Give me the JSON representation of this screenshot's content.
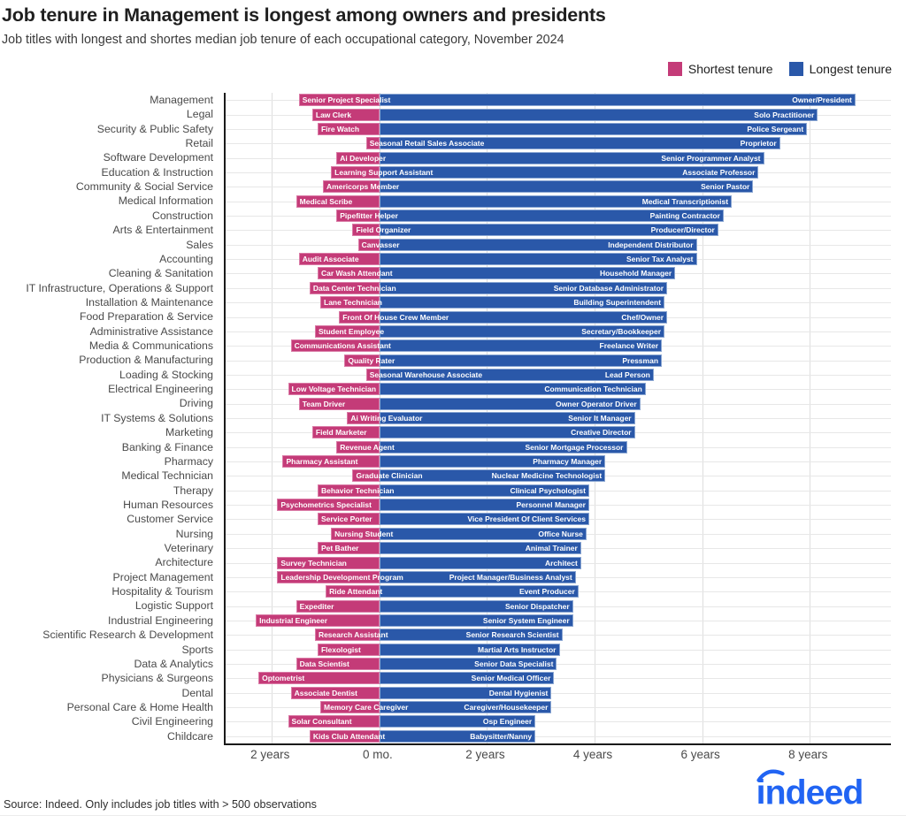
{
  "header": {
    "title": "Job tenure in Management is longest among owners and presidents",
    "subtitle": "Job titles with longest and shortes median job tenure of each occupational category, November 2024"
  },
  "legend": [
    {
      "label": "Shortest tenure",
      "color": "#c43b78"
    },
    {
      "label": "Longest tenure",
      "color": "#2a58a9"
    }
  ],
  "source": "Source: Indeed. Only includes job titles with > 500 observations",
  "logo": {
    "text": "indeed",
    "color": "#2164f3"
  },
  "colors": {
    "shortest": "#c43b78",
    "longest": "#2a58a9",
    "axis": "#1a1a1a",
    "gridline": "#e7e7e7"
  },
  "chart_data": {
    "type": "bar",
    "orientation": "horizontal-diverging",
    "unit": "years",
    "xlim": [
      -2.86,
      9.51
    ],
    "grid": true,
    "legend_position": "top-right",
    "categories": [
      "Management",
      "Legal",
      "Security & Public Safety",
      "Retail",
      "Software Development",
      "Education & Instruction",
      "Community & Social Service",
      "Medical Information",
      "Construction",
      "Arts & Entertainment",
      "Sales",
      "Accounting",
      "Cleaning & Sanitation",
      "IT Infrastructure, Operations & Support",
      "Installation & Maintenance",
      "Food Preparation & Service",
      "Administrative Assistance",
      "Media & Communications",
      "Production & Manufacturing",
      "Loading & Stocking",
      "Electrical Engineering",
      "Driving",
      "IT Systems & Solutions",
      "Marketing",
      "Banking & Finance",
      "Pharmacy",
      "Medical Technician",
      "Therapy",
      "Human Resources",
      "Customer Service",
      "Nursing",
      "Veterinary",
      "Architecture",
      "Project Management",
      "Hospitality & Tourism",
      "Logistic Support",
      "Industrial Engineering",
      "Scientific Research & Development",
      "Sports",
      "Data & Analytics",
      "Physicians & Surgeons",
      "Dental",
      "Personal Care & Home Health",
      "Civil Engineering",
      "Childcare"
    ],
    "series": [
      {
        "name": "Shortest tenure",
        "direction": "left",
        "color": "#c43b78",
        "values": [
          1.5,
          1.25,
          1.15,
          0.25,
          0.8,
          0.9,
          1.05,
          1.55,
          0.8,
          0.5,
          0.4,
          1.5,
          1.15,
          1.3,
          1.1,
          0.75,
          1.2,
          1.65,
          0.65,
          0.25,
          1.7,
          1.5,
          0.6,
          1.25,
          0.8,
          1.8,
          0.5,
          1.15,
          1.9,
          1.15,
          0.9,
          1.15,
          1.9,
          1.9,
          1.0,
          1.55,
          2.3,
          1.2,
          1.15,
          1.55,
          2.25,
          1.65,
          1.1,
          1.7,
          1.3
        ],
        "labels": [
          "Senior Project Specialist",
          "Law Clerk",
          "Fire Watch",
          "Seasonal Retail Sales Associate",
          "Ai Developer",
          "Learning Support Assistant",
          "Americorps Member",
          "Medical Scribe",
          "Pipefitter Helper",
          "Field Organizer",
          "Canvasser",
          "Audit Associate",
          "Car Wash Attendant",
          "Data Center Technician",
          "Lane Technician",
          "Front Of House Crew Member",
          "Student Employee",
          "Communications Assistant",
          "Quality Rater",
          "Seasonal Warehouse Associate",
          "Low Voltage Technician",
          "Team Driver",
          "Ai Writing Evaluator",
          "Field Marketer",
          "Revenue Agent",
          "Pharmacy Assistant",
          "Graduate Clinician",
          "Behavior Technician",
          "Psychometrics Specialist",
          "Service Porter",
          "Nursing Student",
          "Pet Bather",
          "Survey Technician",
          "Leadership Development Program",
          "Ride Attendant",
          "Expediter",
          "Industrial Engineer",
          "Research Assistant",
          "Flexologist",
          "Data Scientist",
          "Optometrist",
          "Associate Dentist",
          "Memory Care Caregiver",
          "Solar Consultant",
          "Kids Club Attendant"
        ]
      },
      {
        "name": "Longest tenure",
        "direction": "right",
        "color": "#2a58a9",
        "values": [
          8.85,
          8.15,
          7.95,
          7.45,
          7.15,
          7.05,
          6.95,
          6.55,
          6.4,
          6.3,
          5.9,
          5.9,
          5.5,
          5.35,
          5.3,
          5.35,
          5.3,
          5.25,
          5.25,
          5.1,
          4.95,
          4.85,
          4.75,
          4.75,
          4.6,
          4.2,
          4.2,
          3.9,
          3.9,
          3.9,
          3.85,
          3.75,
          3.75,
          3.65,
          3.7,
          3.6,
          3.6,
          3.4,
          3.35,
          3.3,
          3.25,
          3.2,
          3.2,
          2.9,
          2.9
        ],
        "labels": [
          "Owner/President",
          "Solo Practitioner",
          "Police Sergeant",
          "Proprietor",
          "Senior Programmer Analyst",
          "Associate Professor",
          "Senior Pastor",
          "Medical Transcriptionist",
          "Painting Contractor",
          "Producer/Director",
          "Independent Distributor",
          "Senior Tax Analyst",
          "Household Manager",
          "Senior Database Administrator",
          "Building Superintendent",
          "Chef/Owner",
          "Secretary/Bookkeeper",
          "Freelance Writer",
          "Pressman",
          "Lead Person",
          "Communication Technician",
          "Owner Operator Driver",
          "Senior It Manager",
          "Creative Director",
          "Senior Mortgage Processor",
          "Pharmacy Manager",
          "Nuclear Medicine Technologist",
          "Clinical Psychologist",
          "Personnel Manager",
          "Vice President Of Client Services",
          "Office Nurse",
          "Animal Trainer",
          "Architect",
          "Project Manager/Business Analyst",
          "Event Producer",
          "Senior Dispatcher",
          "Senior System Engineer",
          "Senior Research Scientist",
          "Martial Arts Instructor",
          "Senior Data Specialist",
          "Senior Medical Officer",
          "Dental Hygienist",
          "Caregiver/Housekeeper",
          "Osp Engineer",
          "Babysitter/Nanny"
        ]
      }
    ],
    "x_axis": {
      "ticks": [
        {
          "label": "2 years",
          "years": -2
        },
        {
          "label": "0 mo.",
          "years": 0
        },
        {
          "label": "2 years",
          "years": 2
        },
        {
          "label": "4 years",
          "years": 4
        },
        {
          "label": "6 years",
          "years": 6
        },
        {
          "label": "8 years",
          "years": 8
        }
      ]
    }
  }
}
